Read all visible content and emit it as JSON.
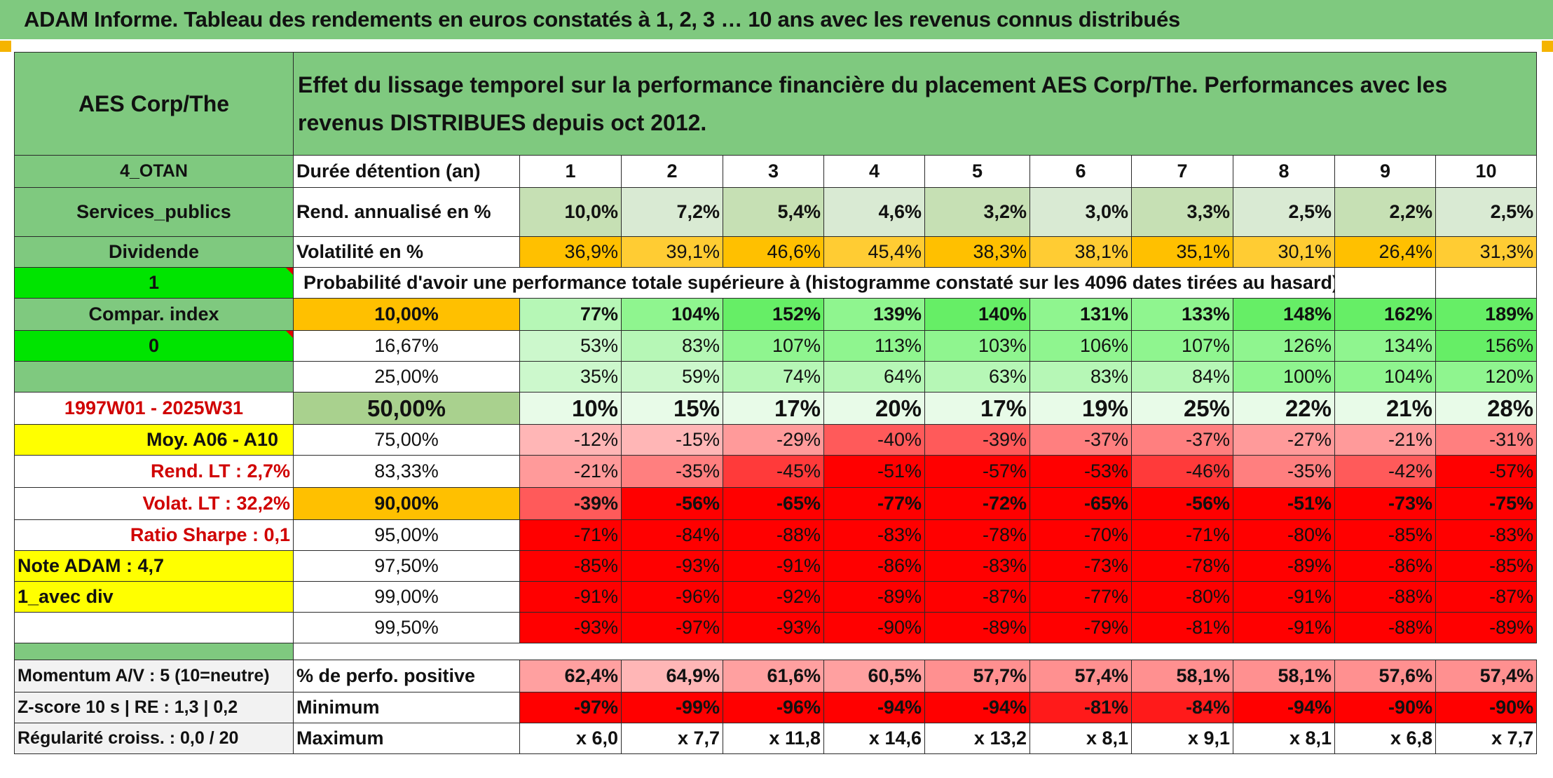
{
  "title": "ADAM Informe. Tableau des rendements en euros constatés à 1, 2, 3 … 10 ans avec les revenus connus distribués",
  "left": {
    "asset": "AES Corp/The",
    "code": "4_OTAN",
    "sector": "Services_publics",
    "type": "Dividende",
    "flag1": "1",
    "compar": "Compar. index",
    "flag0": "0",
    "period": "1997W01 - 2025W31",
    "moy": "Moy. A06 - A10",
    "rend_lt": "Rend. LT :   2,7%",
    "volat_lt": "Volat. LT :   32,2%",
    "sharpe": "Ratio Sharpe :   0,1",
    "note": "Note ADAM : 4,7",
    "div": "1_avec div"
  },
  "header_text": "Effet du lissage temporel sur la performance financière du placement AES Corp/The. Performances avec les revenus DISTRIBUES depuis oct 2012.",
  "duration_label": "Durée détention (an)",
  "years": [
    "1",
    "2",
    "3",
    "4",
    "5",
    "6",
    "7",
    "8",
    "9",
    "10"
  ],
  "rend": {
    "label": "Rend. annualisé en %",
    "values": [
      "10,0%",
      "7,2%",
      "5,4%",
      "4,6%",
      "3,2%",
      "3,0%",
      "3,3%",
      "2,5%",
      "2,2%",
      "2,5%"
    ]
  },
  "vol": {
    "label": "Volatilité en %",
    "values": [
      "36,9%",
      "39,1%",
      "46,6%",
      "45,4%",
      "38,3%",
      "38,1%",
      "35,1%",
      "30,1%",
      "26,4%",
      "31,3%"
    ]
  },
  "prob_label": "Probabilité d'avoir une performance totale supérieure à (histogramme constaté sur les 4096 dates tirées au hasard)",
  "prob_rows": [
    {
      "pct": "10,00%",
      "values": [
        "77%",
        "104%",
        "152%",
        "139%",
        "140%",
        "131%",
        "133%",
        "148%",
        "162%",
        "189%"
      ]
    },
    {
      "pct": "16,67%",
      "values": [
        "53%",
        "83%",
        "107%",
        "113%",
        "103%",
        "106%",
        "107%",
        "126%",
        "134%",
        "156%"
      ]
    },
    {
      "pct": "25,00%",
      "values": [
        "35%",
        "59%",
        "74%",
        "64%",
        "63%",
        "83%",
        "84%",
        "100%",
        "104%",
        "120%"
      ]
    },
    {
      "pct": "50,00%",
      "values": [
        "10%",
        "15%",
        "17%",
        "20%",
        "17%",
        "19%",
        "25%",
        "22%",
        "21%",
        "28%"
      ]
    },
    {
      "pct": "75,00%",
      "values": [
        "-12%",
        "-15%",
        "-29%",
        "-40%",
        "-39%",
        "-37%",
        "-37%",
        "-27%",
        "-21%",
        "-31%"
      ]
    },
    {
      "pct": "83,33%",
      "values": [
        "-21%",
        "-35%",
        "-45%",
        "-51%",
        "-57%",
        "-53%",
        "-46%",
        "-35%",
        "-42%",
        "-57%"
      ]
    },
    {
      "pct": "90,00%",
      "values": [
        "-39%",
        "-56%",
        "-65%",
        "-77%",
        "-72%",
        "-65%",
        "-56%",
        "-51%",
        "-73%",
        "-75%"
      ]
    },
    {
      "pct": "95,00%",
      "values": [
        "-71%",
        "-84%",
        "-88%",
        "-83%",
        "-78%",
        "-70%",
        "-71%",
        "-80%",
        "-85%",
        "-83%"
      ]
    },
    {
      "pct": "97,50%",
      "values": [
        "-85%",
        "-93%",
        "-91%",
        "-86%",
        "-83%",
        "-73%",
        "-78%",
        "-89%",
        "-86%",
        "-85%"
      ]
    },
    {
      "pct": "99,00%",
      "values": [
        "-91%",
        "-96%",
        "-92%",
        "-89%",
        "-87%",
        "-77%",
        "-80%",
        "-91%",
        "-88%",
        "-87%"
      ]
    },
    {
      "pct": "99,50%",
      "values": [
        "-93%",
        "-97%",
        "-93%",
        "-90%",
        "-89%",
        "-79%",
        "-81%",
        "-91%",
        "-88%",
        "-89%"
      ]
    }
  ],
  "bottom": {
    "momentum": "Momentum A/V : 5 (10=neutre)",
    "zscore": "Z-score 10 s | RE : 1,3 | 0,2",
    "regularite": "Régularité croiss. : 0,0 / 20",
    "pos": {
      "label": "% de perfo. positive",
      "values": [
        "62,4%",
        "64,9%",
        "61,6%",
        "60,5%",
        "57,7%",
        "57,4%",
        "58,1%",
        "58,1%",
        "57,6%",
        "57,4%"
      ]
    },
    "min": {
      "label": "Minimum",
      "values": [
        "-97%",
        "-99%",
        "-96%",
        "-94%",
        "-94%",
        "-81%",
        "-84%",
        "-94%",
        "-90%",
        "-90%"
      ]
    },
    "max": {
      "label": "Maximum",
      "values": [
        "x 6,0",
        "x 7,7",
        "x 11,8",
        "x 14,6",
        "x 13,2",
        "x 8,1",
        "x 9,1",
        "x 8,1",
        "x 6,8",
        "x 7,7"
      ]
    }
  },
  "colors": {
    "title_bg": "#7fc97f",
    "yellow": "#ffff00",
    "orange": "#ffc000",
    "bright_green": "#00e400",
    "red_text": "#d00000"
  }
}
